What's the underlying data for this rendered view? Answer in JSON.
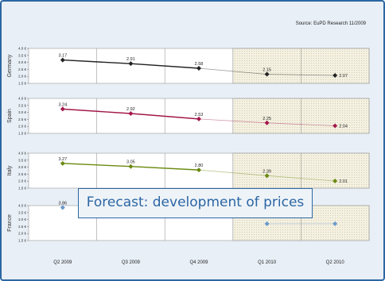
{
  "source": "Source: EuPD Research 11/2009",
  "callout": "Forecast: development of prices",
  "chart_data": {
    "type": "line",
    "categories": [
      "Q2 2009",
      "Q3 2009",
      "Q4 2009",
      "Q1 2010",
      "Q2 2010"
    ],
    "forecast_from_index": 3,
    "yticks": [
      "1.5 €",
      "2.0 €",
      "2.5 €",
      "3.0 €",
      "3.5 €",
      "4.0 €"
    ],
    "ylim": [
      1.5,
      4.0
    ],
    "series": [
      {
        "name": "Germany",
        "color": "#222222",
        "values": [
          3.17,
          2.91,
          2.58,
          2.15,
          2.07
        ],
        "labels": [
          "3.17",
          "2.91",
          "2.58",
          "2.15",
          "2.07"
        ]
      },
      {
        "name": "Spain",
        "color": "#a3174a",
        "values": [
          3.24,
          2.92,
          2.53,
          2.25,
          2.04
        ],
        "labels": [
          "3.24",
          "2.92",
          "2.53",
          "2.25",
          "2.04"
        ]
      },
      {
        "name": "Italy",
        "color": "#6a8a10",
        "values": [
          3.27,
          3.05,
          2.8,
          2.39,
          2.01
        ],
        "labels": [
          "3.27",
          "3.05",
          "2.80",
          "2.39",
          "2.01"
        ]
      },
      {
        "name": "France",
        "color": "#6a98cc",
        "values": [
          3.86,
          null,
          null,
          2.7,
          2.7
        ],
        "labels": [
          "3.86",
          "",
          "",
          "",
          ""
        ]
      }
    ]
  }
}
